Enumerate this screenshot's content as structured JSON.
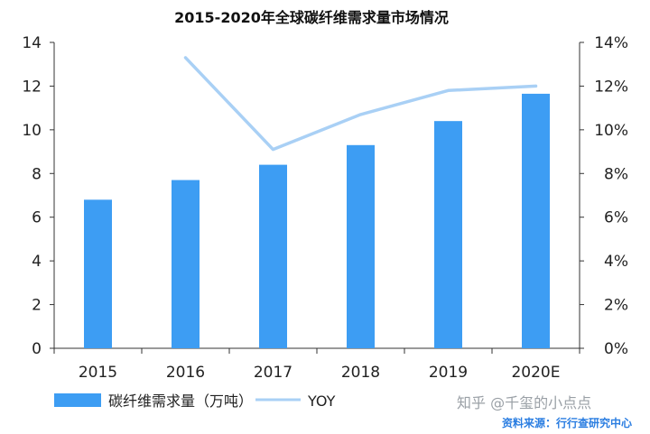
{
  "chart_data": {
    "type": "bar",
    "title": "2015-2020年全球碳纤维需求量市场情况",
    "categories": [
      "2015",
      "2016",
      "2017",
      "2018",
      "2019",
      "2020E"
    ],
    "series": [
      {
        "name": "碳纤维需求量（万吨）",
        "type": "bar",
        "axis": "left",
        "color": "#3d9df3",
        "values": [
          6.8,
          7.7,
          8.4,
          9.3,
          10.4,
          11.65
        ]
      },
      {
        "name": "YOY",
        "type": "line",
        "axis": "right",
        "color": "#a9d0f5",
        "values": [
          null,
          13.3,
          9.1,
          10.7,
          11.8,
          12.0
        ]
      }
    ],
    "y_left": {
      "min": 0,
      "max": 14,
      "step": 2,
      "ticks": [
        "0",
        "2",
        "4",
        "6",
        "8",
        "10",
        "12",
        "14"
      ]
    },
    "y_right": {
      "min": 0,
      "max": 14,
      "step": 2,
      "ticks": [
        "0%",
        "2%",
        "4%",
        "6%",
        "8%",
        "10%",
        "12%",
        "14%"
      ]
    },
    "grid": false,
    "legend_position": "bottom-left"
  },
  "watermark": "知乎 @千玺的小点点",
  "source": "资料来源：行行查研究中心"
}
